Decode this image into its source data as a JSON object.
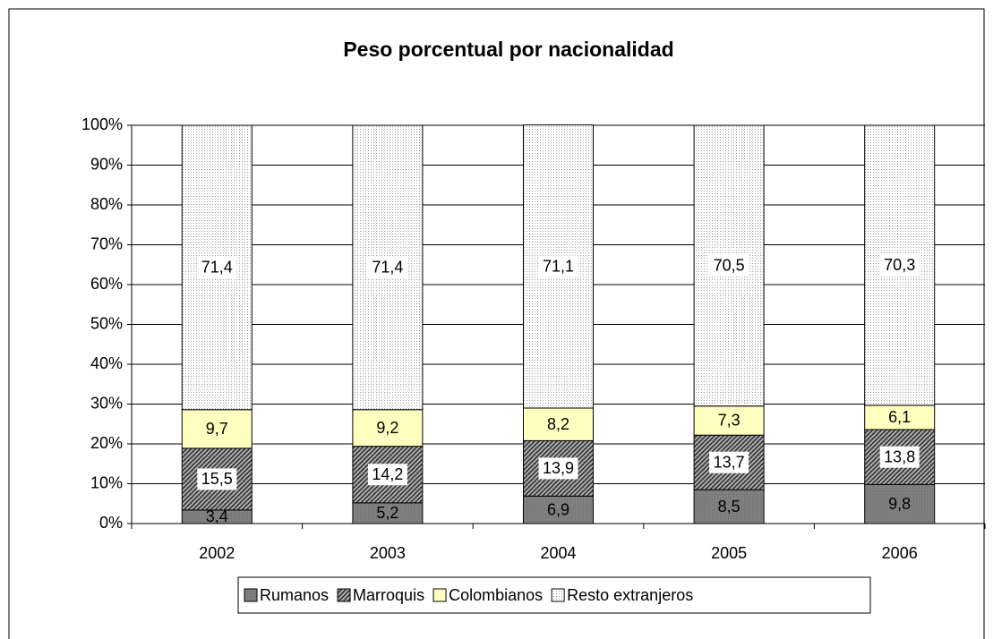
{
  "chart_data": {
    "type": "stacked_bar",
    "title": "Peso porcentual por nacionalidad",
    "categories": [
      "2002",
      "2003",
      "2004",
      "2005",
      "2006"
    ],
    "series": [
      {
        "name": "Rumanos",
        "color": "#808080",
        "values": [
          3.4,
          5.2,
          6.9,
          8.5,
          9.8
        ],
        "value_labels": [
          "3,4",
          "5,2",
          "6,9",
          "8,5",
          "9,8"
        ]
      },
      {
        "name": "Marroquis",
        "color": "#606060",
        "values": [
          15.5,
          14.2,
          13.9,
          13.7,
          13.8
        ],
        "value_labels": [
          "15,5",
          "14,2",
          "13,9",
          "13,7",
          "13,8"
        ]
      },
      {
        "name": "Colombianos",
        "color": "#ffffc0",
        "values": [
          9.7,
          9.2,
          8.2,
          7.3,
          6.1
        ],
        "value_labels": [
          "9,7",
          "9,2",
          "8,2",
          "7,3",
          "6,1"
        ]
      },
      {
        "name": "Resto extranjeros",
        "color": "#f4f4f4",
        "values": [
          71.4,
          71.4,
          71.1,
          70.5,
          70.3
        ],
        "value_labels": [
          "71,4",
          "71,4",
          "71,1",
          "70,5",
          "70,3"
        ]
      }
    ],
    "ylim": [
      0,
      100
    ],
    "yticks": [
      {
        "value": 0,
        "label": "0%"
      },
      {
        "value": 10,
        "label": "10%"
      },
      {
        "value": 20,
        "label": "20%"
      },
      {
        "value": 30,
        "label": "30%"
      },
      {
        "value": 40,
        "label": "40%"
      },
      {
        "value": 50,
        "label": "50%"
      },
      {
        "value": 60,
        "label": "60%"
      },
      {
        "value": 70,
        "label": "70%"
      },
      {
        "value": 80,
        "label": "80%"
      },
      {
        "value": 90,
        "label": "90%"
      },
      {
        "value": 100,
        "label": "100%"
      }
    ],
    "grid": true,
    "legend": "bottom"
  }
}
